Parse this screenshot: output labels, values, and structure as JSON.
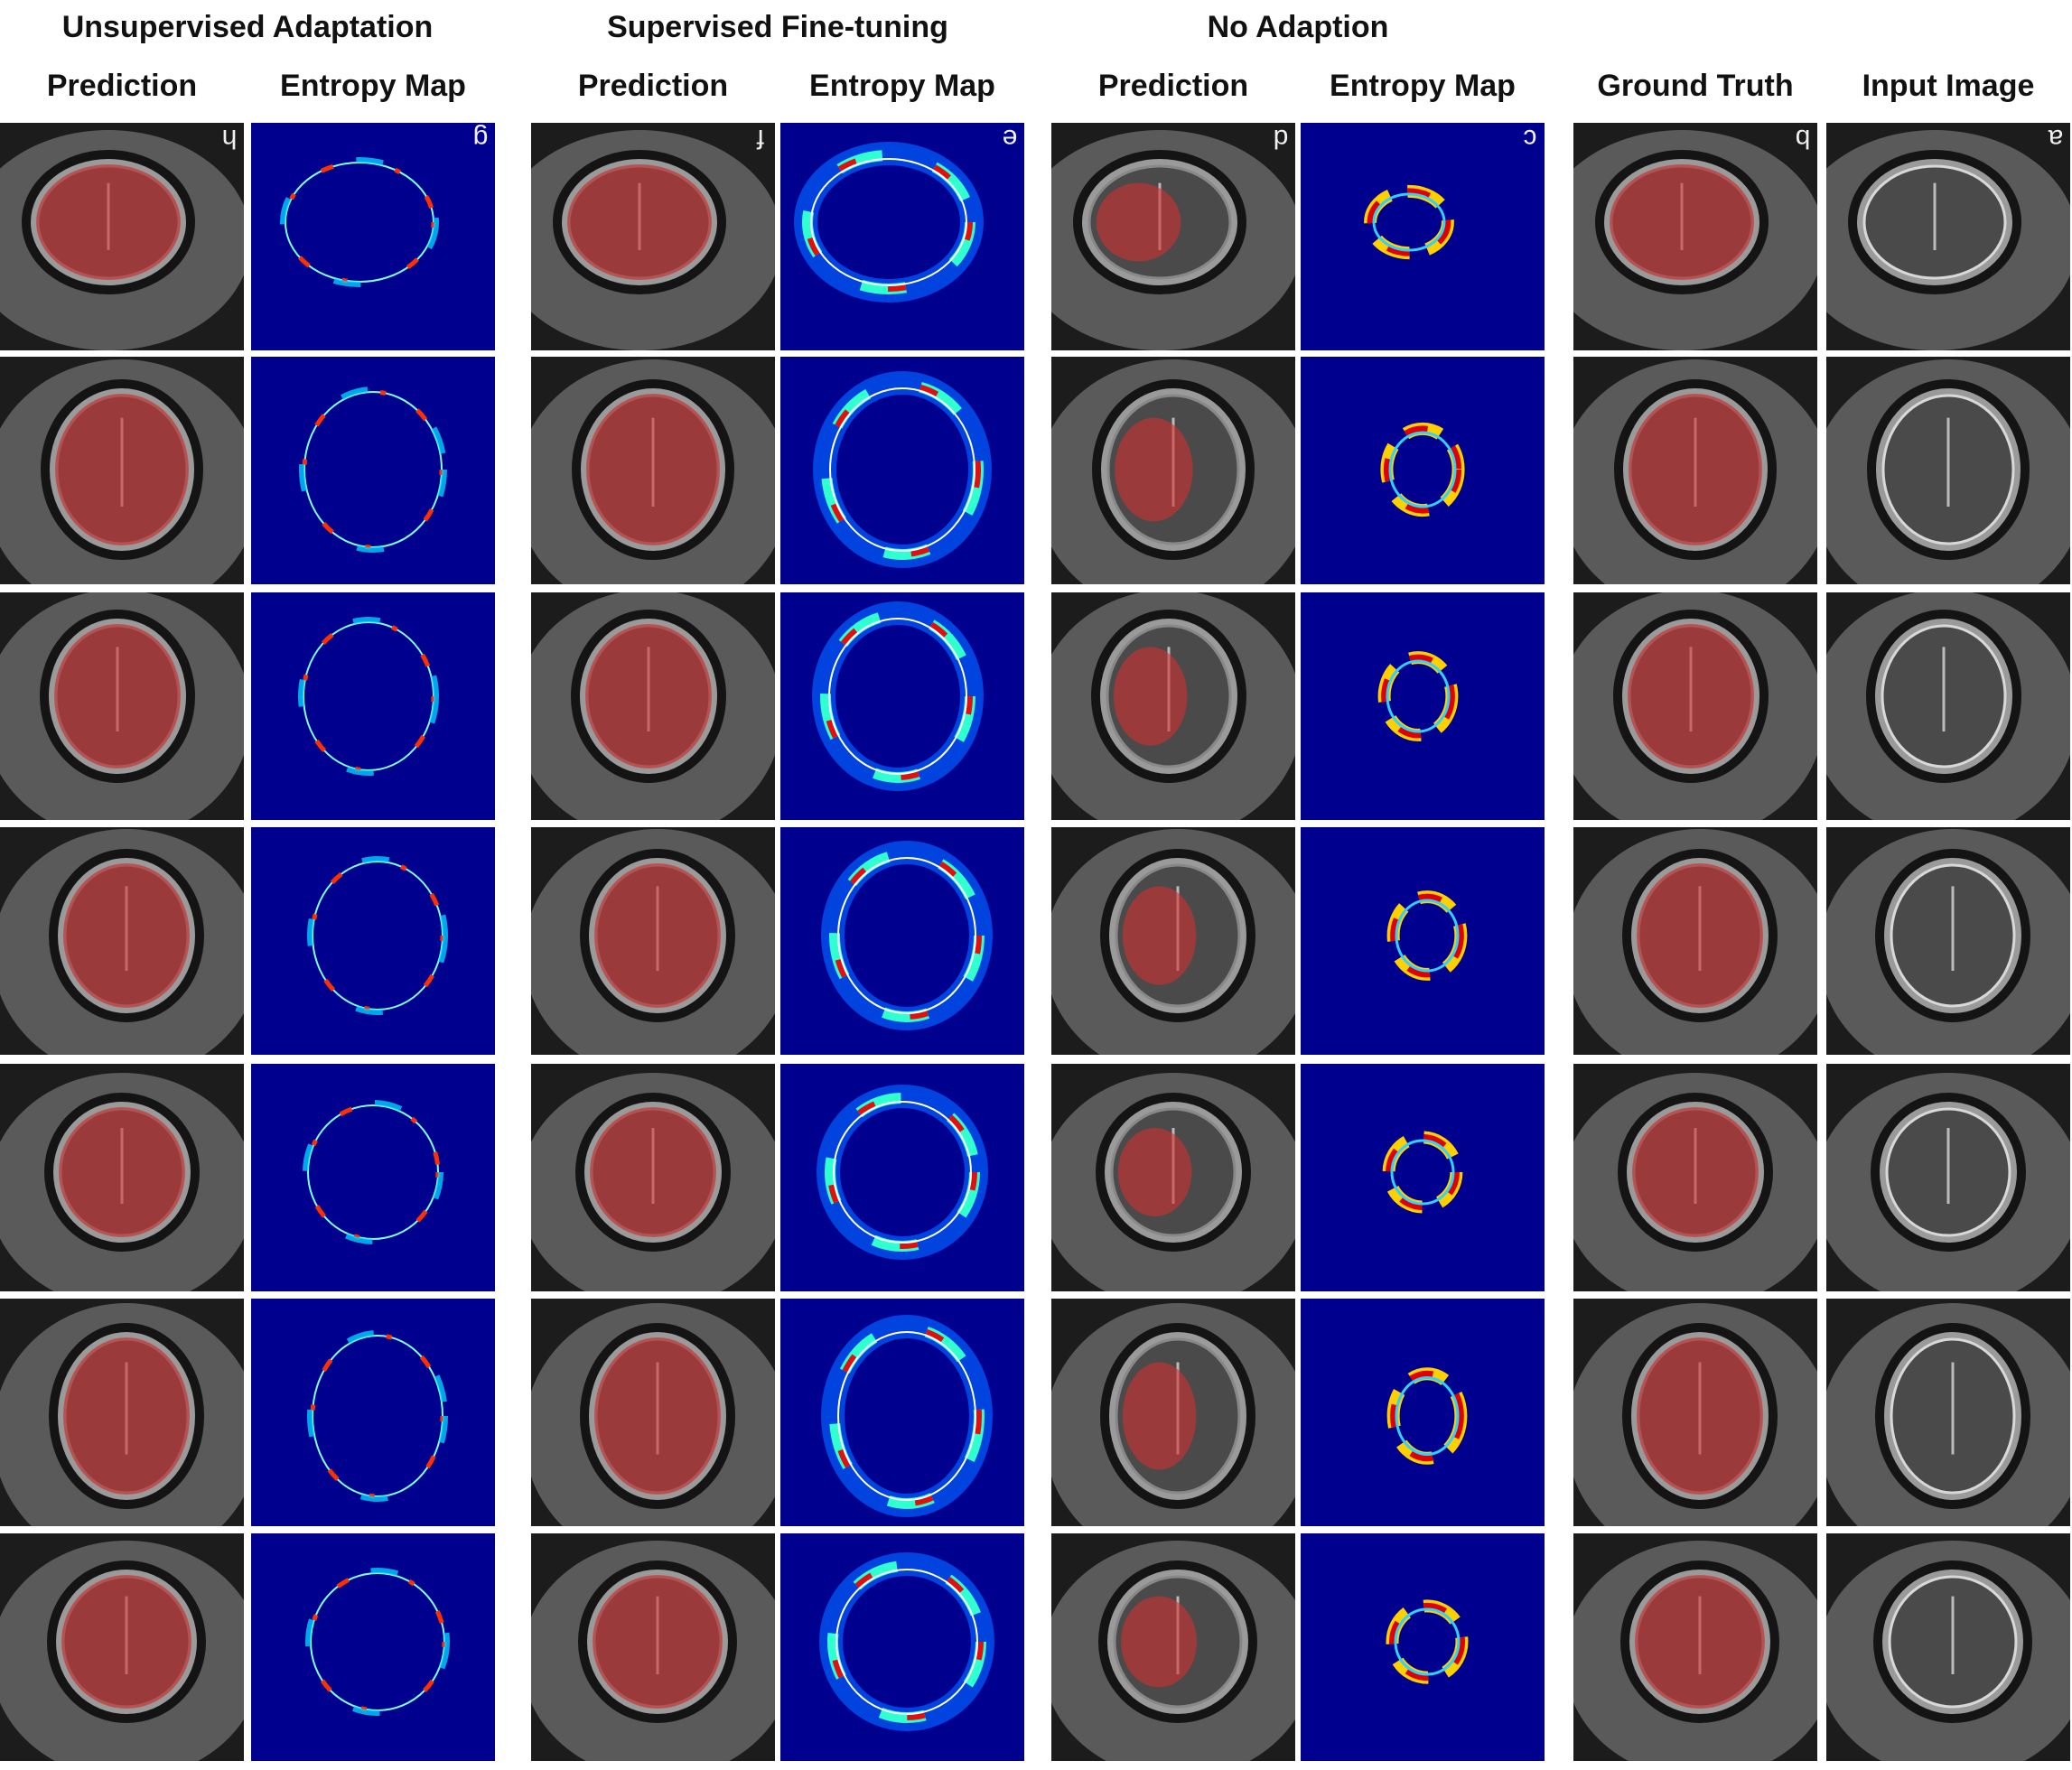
{
  "groups": [
    {
      "title": "Unsupervised Adaptation"
    },
    {
      "title": "Supervised Fine-tuning"
    },
    {
      "title": "No Adaption"
    }
  ],
  "columns": [
    {
      "header": "Prediction",
      "letter": "h"
    },
    {
      "header": "Entropy Map",
      "letter": "g"
    },
    {
      "header": "Prediction",
      "letter": "f"
    },
    {
      "header": "Entropy Map",
      "letter": "e"
    },
    {
      "header": "Prediction",
      "letter": "d"
    },
    {
      "header": "Entropy Map",
      "letter": "c"
    },
    {
      "header": "Ground Truth",
      "letter": "b"
    },
    {
      "header": "Input Image",
      "letter": "a"
    }
  ]
}
